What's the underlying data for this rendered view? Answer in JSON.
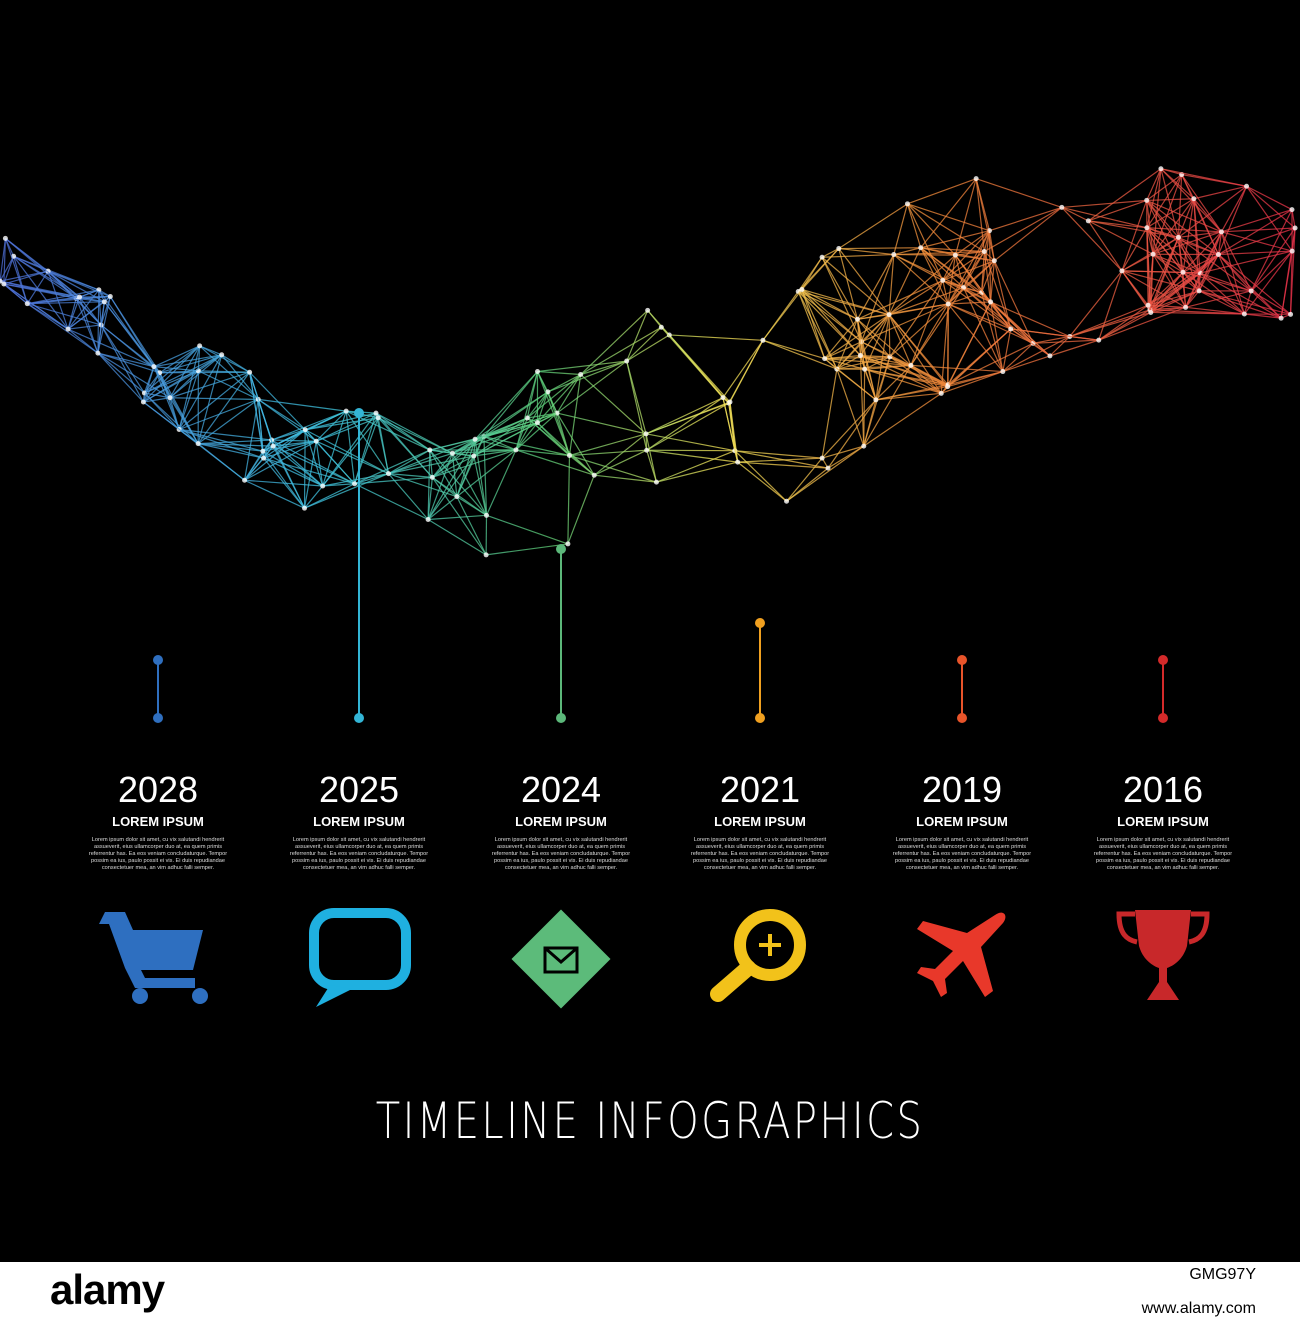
{
  "title": "TIMELINE INFOGRAPHICS",
  "items": [
    {
      "year": "2028",
      "heading": "LOREM IPSUM",
      "body": "Lorem ipsum dolor sit amet, cu vix salutandi hendrerit assueverit, eius ullamcorper duo at, ea quem primis referrentur has. Ea eos veniam concludaturque. Tempor possim ea ius, paulo possit ei vis. Ei duis repudiandae consectetuer mea, an vim adhuc falli semper."
    },
    {
      "year": "2025",
      "heading": "LOREM IPSUM",
      "body": "Lorem ipsum dolor sit amet, cu vix salutandi hendrerit assueverit, eius ullamcorper duo at, ea quem primis referrentur has. Ea eos veniam concludaturque. Tempor possim ea ius, paulo possit ei vis. Ei duis repudiandae consectetuer mea, an vim adhuc falli semper."
    },
    {
      "year": "2024",
      "heading": "LOREM IPSUM",
      "body": "Lorem ipsum dolor sit amet, cu vix salutandi hendrerit assueverit, eius ullamcorper duo at, ea quem primis referrentur has. Ea eos veniam concludaturque. Tempor possim ea ius, paulo possit ei vis. Ei duis repudiandae consectetuer mea, an vim adhuc falli semper."
    },
    {
      "year": "2021",
      "heading": "LOREM IPSUM",
      "body": "Lorem ipsum dolor sit amet, cu vix salutandi hendrerit assueverit, eius ullamcorper duo at, ea quem primis referrentur has. Ea eos veniam concludaturque. Tempor possim ea ius, paulo possit ei vis. Ei duis repudiandae consectetuer mea, an vim adhuc falli semper."
    },
    {
      "year": "2019",
      "heading": "LOREM IPSUM",
      "body": "Lorem ipsum dolor sit amet, cu vix salutandi hendrerit assueverit, eius ullamcorper duo at, ea quem primis referrentur has. Ea eos veniam concludaturque. Tempor possim ea ius, paulo possit ei vis. Ei duis repudiandae consectetuer mea, an vim adhuc falli semper."
    },
    {
      "year": "2016",
      "heading": "LOREM IPSUM",
      "body": "Lorem ipsum dolor sit amet, cu vix salutandi hendrerit assueverit, eius ullamcorper duo at, ea quem primis referrentur has. Ea eos veniam concludaturque. Tempor possim ea ius, paulo possit ei vis. Ei duis repudiandae consectetuer mea, an vim adhuc falli semper."
    }
  ],
  "watermark": {
    "brand": "alamy",
    "id": "GMG97Y",
    "url": "www.alamy.com"
  }
}
